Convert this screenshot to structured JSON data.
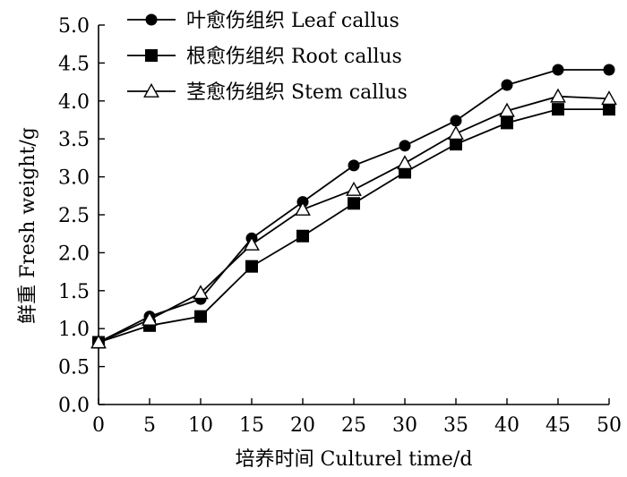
{
  "chart_data": {
    "type": "line",
    "xlabel": "培养时间 Culturel time/d",
    "ylabel": "鲜重 Fresh weight/g",
    "xlim": [
      0,
      50
    ],
    "ylim": [
      0,
      5.0
    ],
    "x": [
      0,
      5,
      10,
      15,
      20,
      25,
      30,
      35,
      40,
      45,
      50
    ],
    "x_ticks": [
      "0",
      "5",
      "10",
      "15",
      "20",
      "25",
      "30",
      "35",
      "40",
      "45",
      "50"
    ],
    "y_ticks": [
      "0.0",
      "0.5",
      "1.0",
      "1.5",
      "2.0",
      "2.5",
      "3.0",
      "3.5",
      "4.0",
      "4.5",
      "5.0"
    ],
    "y_tick_values": [
      0,
      0.5,
      1.0,
      1.5,
      2.0,
      2.5,
      3.0,
      3.5,
      4.0,
      4.5,
      5.0
    ],
    "grid": false,
    "legend_position": "top-left",
    "series": [
      {
        "name": "叶愈伤组织 Leaf callus",
        "marker": "circle",
        "values": [
          0.82,
          1.16,
          1.39,
          2.19,
          2.67,
          3.15,
          3.41,
          3.74,
          4.21,
          4.41,
          4.41
        ]
      },
      {
        "name": "根愈伤组织 Root callus",
        "marker": "square",
        "values": [
          0.82,
          1.04,
          1.16,
          1.82,
          2.22,
          2.65,
          3.06,
          3.43,
          3.71,
          3.89,
          3.89
        ]
      },
      {
        "name": "茎愈伤组织 Stem callus",
        "marker": "triangle-open",
        "values": [
          0.82,
          1.12,
          1.47,
          2.11,
          2.57,
          2.83,
          3.18,
          3.57,
          3.87,
          4.06,
          4.03
        ]
      }
    ]
  }
}
